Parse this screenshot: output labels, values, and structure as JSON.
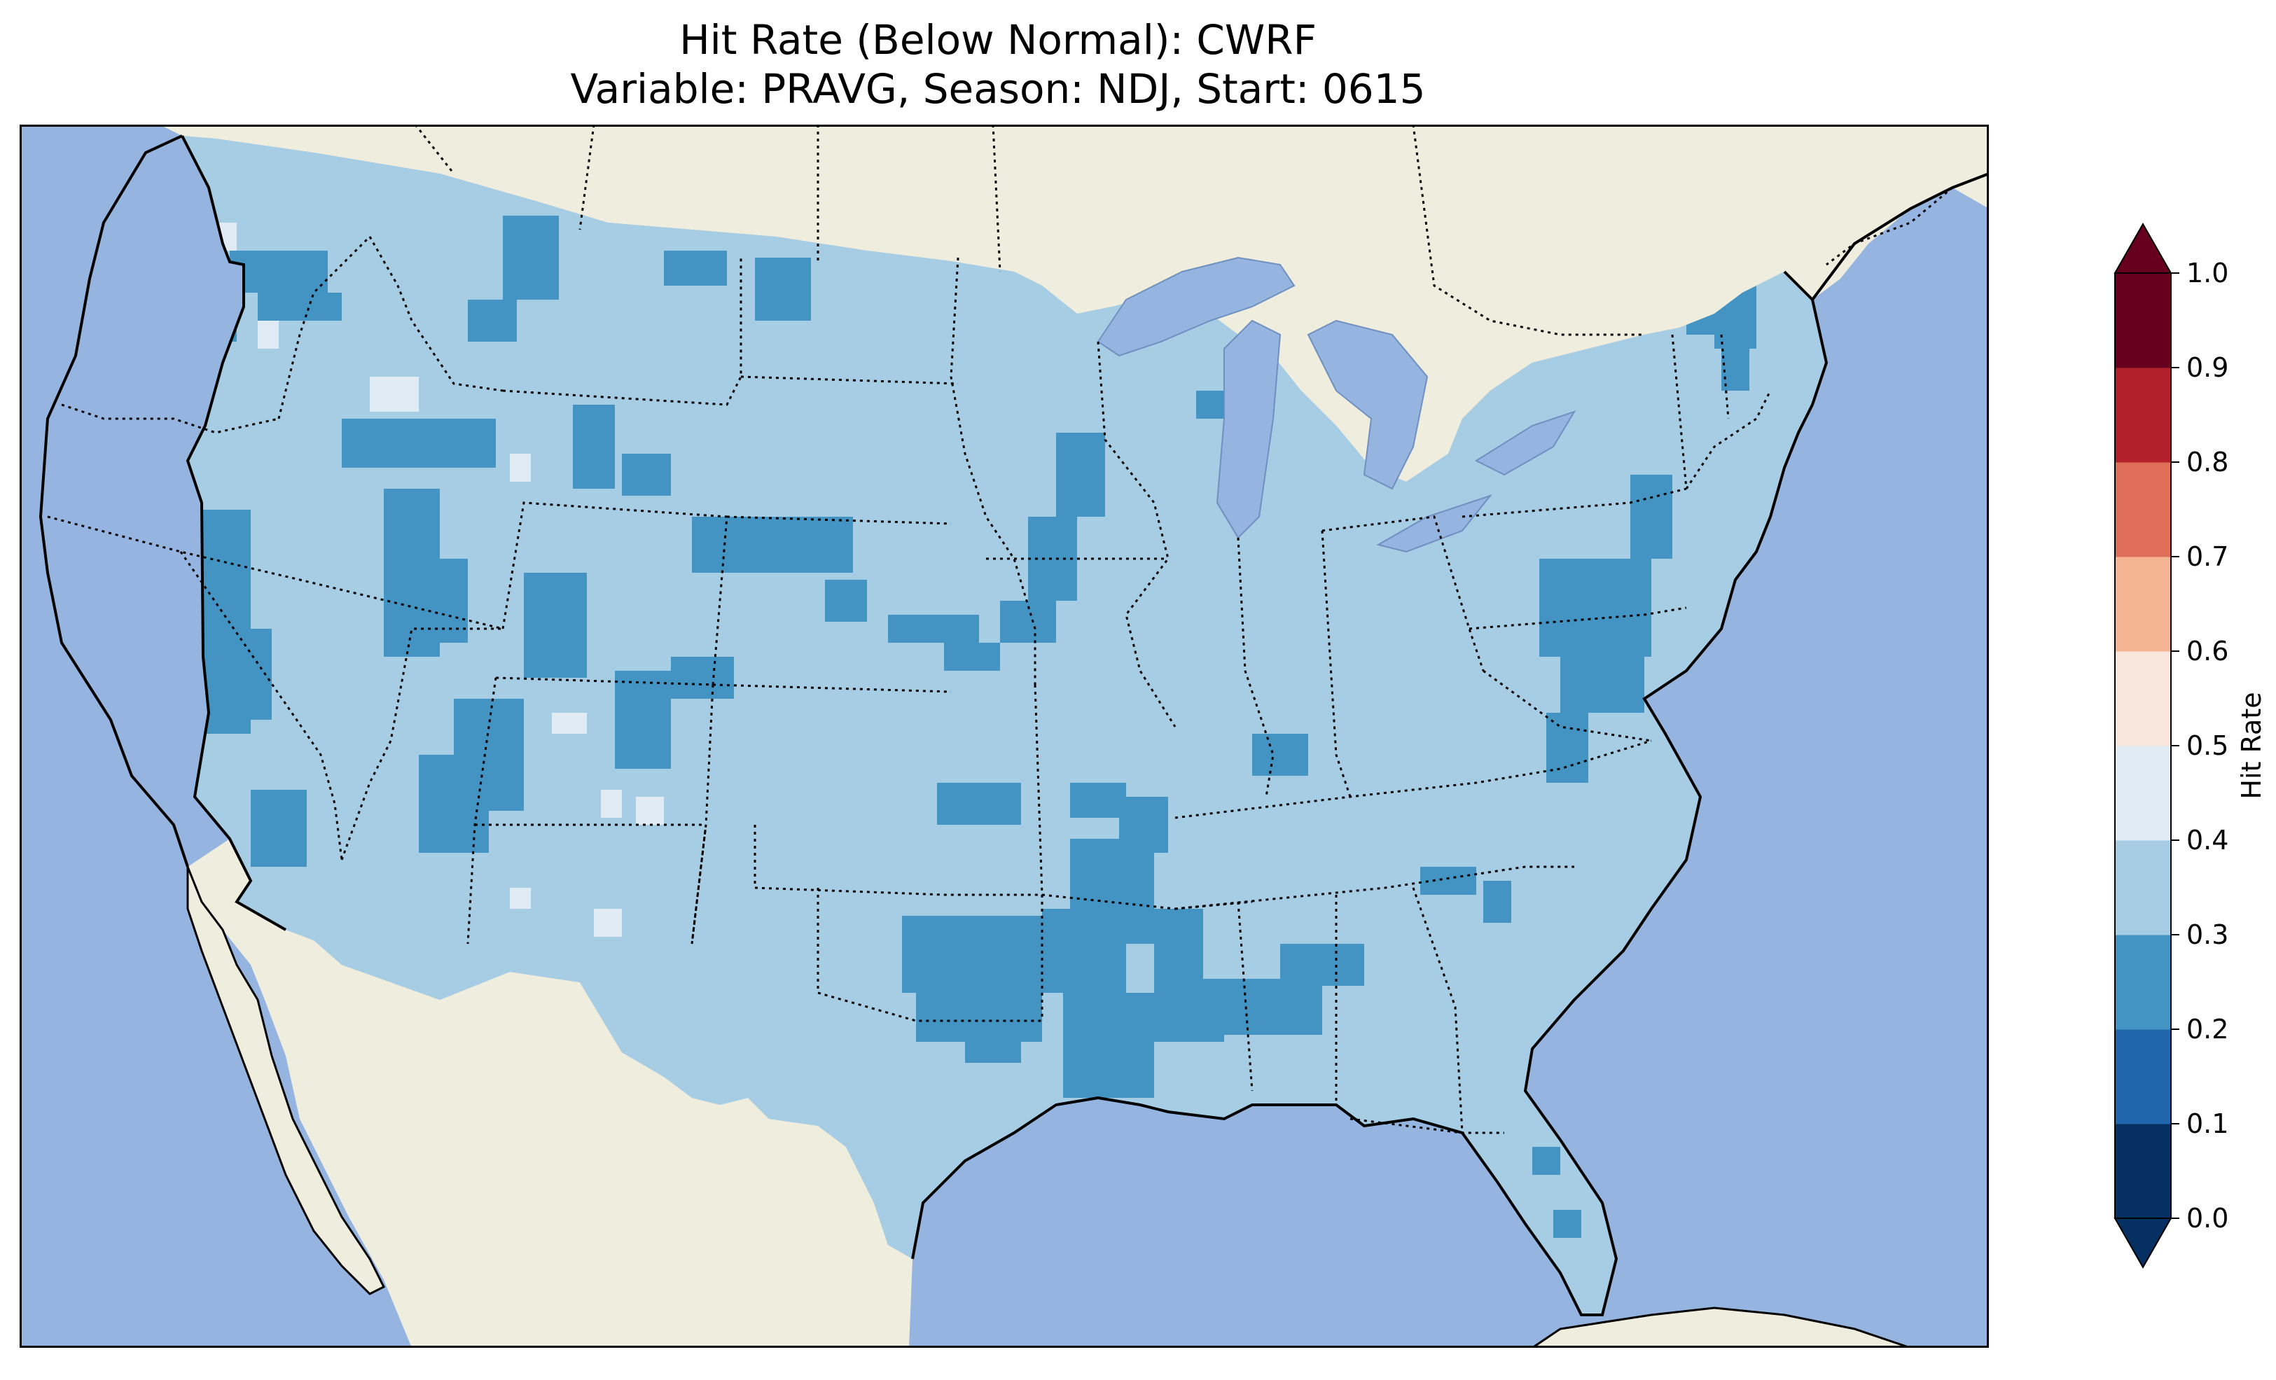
{
  "title": {
    "line1": "Hit Rate (Below Normal): CWRF",
    "line2": "Variable: PRAVG, Season: NDJ, Start: 0615"
  },
  "map": {
    "ocean_color": "#96b4e0",
    "land_color": "#efedde",
    "lake_color": "#96b4e0"
  },
  "colorbar": {
    "label": "Hit Rate",
    "ticks": [
      "0.0",
      "0.1",
      "0.2",
      "0.3",
      "0.4",
      "0.5",
      "0.6",
      "0.7",
      "0.8",
      "0.9",
      "1.0"
    ],
    "bins": [
      {
        "range": [
          0.0,
          0.1
        ],
        "color": "#053061"
      },
      {
        "range": [
          0.1,
          0.2
        ],
        "color": "#2166ac"
      },
      {
        "range": [
          0.2,
          0.3
        ],
        "color": "#4393c3"
      },
      {
        "range": [
          0.3,
          0.4
        ],
        "color": "#a6cde3"
      },
      {
        "range": [
          0.4,
          0.5
        ],
        "color": "#e0ebf3"
      },
      {
        "range": [
          0.5,
          0.6
        ],
        "color": "#f8e6dc"
      },
      {
        "range": [
          0.6,
          0.7
        ],
        "color": "#f4b595"
      },
      {
        "range": [
          0.7,
          0.8
        ],
        "color": "#de6e57"
      },
      {
        "range": [
          0.8,
          0.9
        ],
        "color": "#b2202c"
      },
      {
        "range": [
          0.9,
          1.0
        ],
        "color": "#67001f"
      }
    ],
    "extend_low_color": "#053061",
    "extend_high_color": "#67001f"
  }
}
